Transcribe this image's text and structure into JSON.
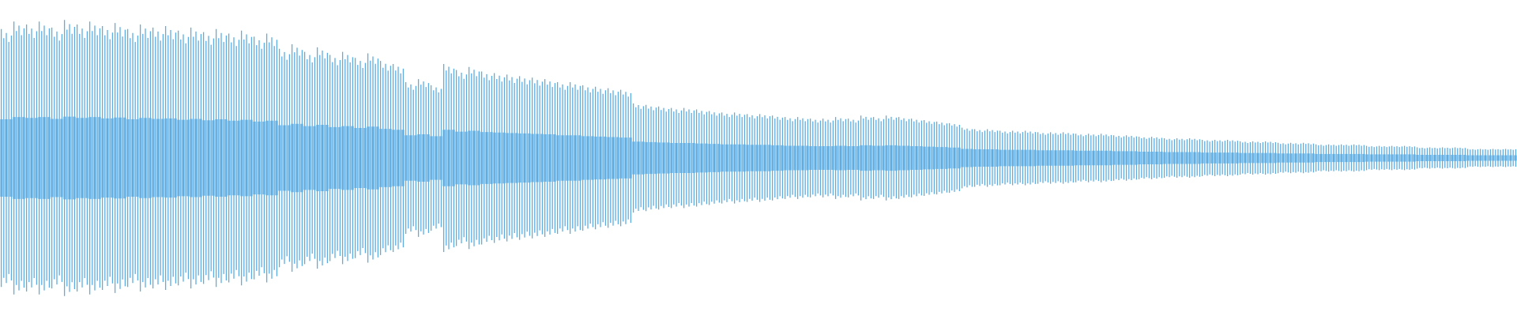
{
  "chart_data": {
    "type": "waveform",
    "color": "#5dade2",
    "ylim": [
      -1,
      1
    ],
    "values": [
      0.85,
      0.9,
      0.88,
      0.9,
      0.86,
      0.91,
      0.88,
      0.9,
      0.87,
      0.89,
      0.85,
      0.88,
      0.86,
      0.87,
      0.84,
      0.86,
      0.83,
      0.85,
      0.82,
      0.84,
      0.8,
      0.82,
      0.72,
      0.75,
      0.7,
      0.73,
      0.68,
      0.7,
      0.66,
      0.69,
      0.64,
      0.62,
      0.5,
      0.52,
      0.48,
      0.62,
      0.58,
      0.6,
      0.57,
      0.56,
      0.55,
      0.54,
      0.53,
      0.52,
      0.5,
      0.5,
      0.48,
      0.47,
      0.46,
      0.45,
      0.36,
      0.35,
      0.34,
      0.33,
      0.33,
      0.32,
      0.31,
      0.3,
      0.3,
      0.29,
      0.29,
      0.28,
      0.27,
      0.27,
      0.26,
      0.26,
      0.27,
      0.26,
      0.28,
      0.27,
      0.28,
      0.27,
      0.26,
      0.25,
      0.24,
      0.23,
      0.2,
      0.19,
      0.19,
      0.18,
      0.18,
      0.18,
      0.17,
      0.17,
      0.17,
      0.16,
      0.16,
      0.16,
      0.15,
      0.15,
      0.14,
      0.14,
      0.13,
      0.13,
      0.13,
      0.12,
      0.12,
      0.12,
      0.11,
      0.11,
      0.11,
      0.1,
      0.1,
      0.1,
      0.09,
      0.09,
      0.09,
      0.09,
      0.08,
      0.08,
      0.08,
      0.08,
      0.07,
      0.07,
      0.07,
      0.07,
      0.06,
      0.06,
      0.06,
      0.06
    ]
  }
}
